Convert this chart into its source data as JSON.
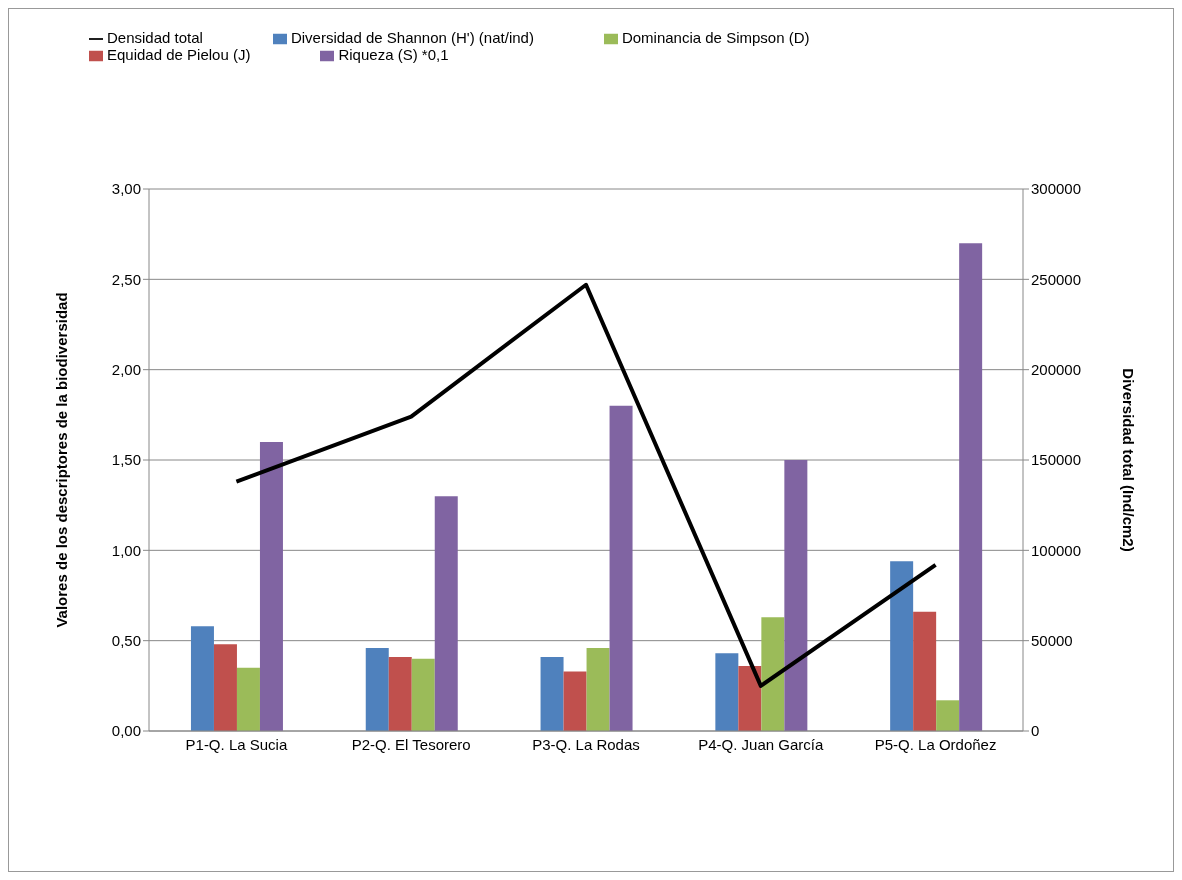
{
  "chart_data": {
    "type": "bar",
    "ylabel": "Valores de los descriptores de la biodiversidad",
    "y2label": "Diversidad total (Ind/cm2)",
    "categories": [
      "P1-Q. La Sucia",
      "P2-Q. El Tesorero",
      "P3-Q. La Rodas",
      "P4-Q. Juan García",
      "P5-Q. La Ordoñez"
    ],
    "series": [
      {
        "name": "Diversidad de Shannon (H') (nat/ind)",
        "color": "#4f81bd",
        "values": [
          0.58,
          0.46,
          0.41,
          0.43,
          0.94
        ]
      },
      {
        "name": "Equidad de Pielou (J)",
        "color": "#c0504d",
        "values": [
          0.48,
          0.41,
          0.33,
          0.36,
          0.66
        ]
      },
      {
        "name": "Dominancia de Simpson (D)",
        "color": "#9bbb59",
        "values": [
          0.35,
          0.4,
          0.46,
          0.63,
          0.17
        ]
      },
      {
        "name": "Riqueza (S) *0,1",
        "color": "#8064a2",
        "values": [
          1.6,
          1.3,
          1.8,
          1.5,
          2.7
        ]
      },
      {
        "name": "Densidad total",
        "color": "#000000",
        "type": "line",
        "axis": "y2",
        "values": [
          138000,
          174000,
          247000,
          25000,
          92000
        ]
      }
    ],
    "ylim": [
      0,
      3
    ],
    "yticks": [
      {
        "value": 0,
        "label": "0,00"
      },
      {
        "value": 0.5,
        "label": "0,50"
      },
      {
        "value": 1,
        "label": "1,00"
      },
      {
        "value": 1.5,
        "label": "1,50"
      },
      {
        "value": 2,
        "label": "2,00"
      },
      {
        "value": 2.5,
        "label": "2,50"
      },
      {
        "value": 3,
        "label": "3,00"
      }
    ],
    "y2lim": [
      0,
      300000
    ],
    "y2ticks": [
      0,
      50000,
      100000,
      150000,
      200000,
      250000,
      300000
    ],
    "grid": "y",
    "legend": "top",
    "marker": "none",
    "line_style": "solid"
  }
}
